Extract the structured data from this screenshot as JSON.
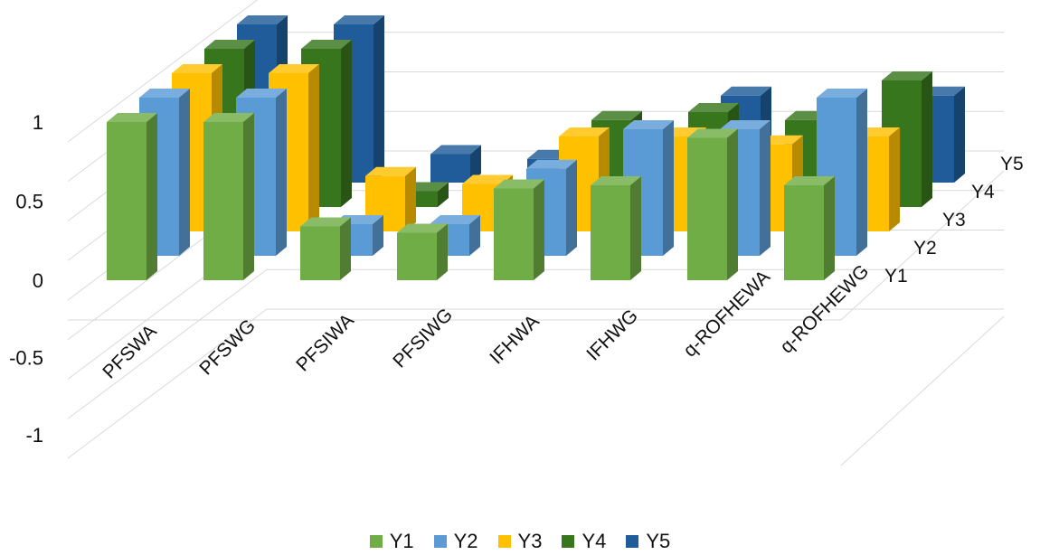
{
  "chart_data": {
    "type": "bar",
    "subtype": "3d-column",
    "title": "",
    "categories": [
      "PFSWA",
      "PFSWG",
      "PFSIWA",
      "PFSIWG",
      "IFHWA",
      "IFHWG",
      "q-ROFHEWA",
      "q-ROFHEWG"
    ],
    "series": [
      {
        "name": "Y1",
        "color": "#70ad47",
        "values": [
          1.0,
          1.0,
          0.34,
          0.3,
          0.58,
          0.6,
          0.9,
          0.6
        ]
      },
      {
        "name": "Y2",
        "color": "#5b9bd5",
        "values": [
          1.0,
          1.0,
          0.2,
          0.2,
          0.55,
          0.8,
          0.8,
          1.0
        ]
      },
      {
        "name": "Y3",
        "color": "#ffc000",
        "values": [
          1.0,
          1.0,
          0.35,
          0.3,
          0.6,
          0.6,
          0.55,
          0.6
        ]
      },
      {
        "name": "Y4",
        "color": "#38761d",
        "values": [
          1.0,
          1.0,
          0.1,
          0.1,
          0.55,
          0.6,
          0.55,
          0.8
        ]
      },
      {
        "name": "Y5",
        "color": "#1f5c99",
        "values": [
          1.0,
          1.0,
          0.18,
          0.15,
          -0.05,
          0.55,
          -0.1,
          0.55
        ]
      }
    ],
    "yticks": [
      "1",
      "0.5",
      "0",
      "-0.5",
      "-1"
    ],
    "ylim": [
      -1,
      1
    ],
    "depth_labels": [
      "Y1",
      "Y2",
      "Y3",
      "Y4",
      "Y5"
    ],
    "legend_position": "bottom",
    "grid": true
  }
}
